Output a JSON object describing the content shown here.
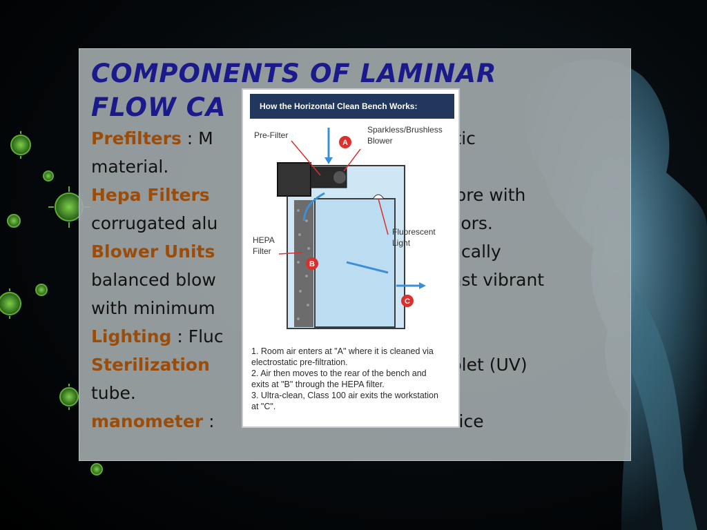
{
  "slide": {
    "title_line1": "COMPONENTS OF LAMINAR",
    "title_line2": "FLOW CA"
  },
  "components": [
    {
      "term": "Prefilters",
      "separator": " : ",
      "text_a": "M",
      "text_b": "ynthetic"
    },
    {
      "term": "Hepa Filters",
      "separator": "",
      "text_a": "",
      "text_b": "ss fibre with"
    },
    {
      "term": "Blower Units",
      "separator": "",
      "text_a": "",
      "text_b": "amically"
    },
    {
      "term": "Lighting",
      "separator": " : ",
      "text_a": "Fluc",
      "text_b": "."
    },
    {
      "term": "Sterilization",
      "separator": "",
      "text_a": "",
      "text_b": "Violet (UV)"
    },
    {
      "term": "manometer",
      "separator": " : ",
      "text_a": "",
      "text_b": "device"
    }
  ],
  "continuations": {
    "prefilters_line2": "material.",
    "hepa_line2_a": "corrugated alu",
    "hepa_line2_b": "ors.",
    "blower_line2_a": "balanced blow",
    "blower_line2_b": "least vibrant",
    "blower_line3_a": "with minimum",
    "sterilization_line2": "tube."
  },
  "diagram": {
    "header": "How the Horizontal Clean Bench  Works:",
    "labels": {
      "pre_filter": "Pre-Filter",
      "blower_1": "Sparkless/Brushless",
      "blower_2": "Blower",
      "hepa_1": "HEPA",
      "hepa_2": "Filter",
      "fluor_1": "Fluorescent",
      "fluor_2": "Light",
      "marker_a": "A",
      "marker_b": "B",
      "marker_c": "C"
    },
    "steps": [
      "1. Room air enters at \"A\" where it is cleaned via",
      "    electrostatic pre-filtration.",
      "2. Air then moves to the rear of the bench and",
      "    exits at \"B\" through the HEPA filter.",
      "3. Ultra-clean, Class 100 air exits the workstation",
      "    at \"C\"."
    ]
  },
  "colors": {
    "title": "#1a1a8a",
    "term": "#9a4d0a",
    "header_bg": "#21375d",
    "marker": "#d9302b",
    "airflow": "#3b8fd6"
  }
}
